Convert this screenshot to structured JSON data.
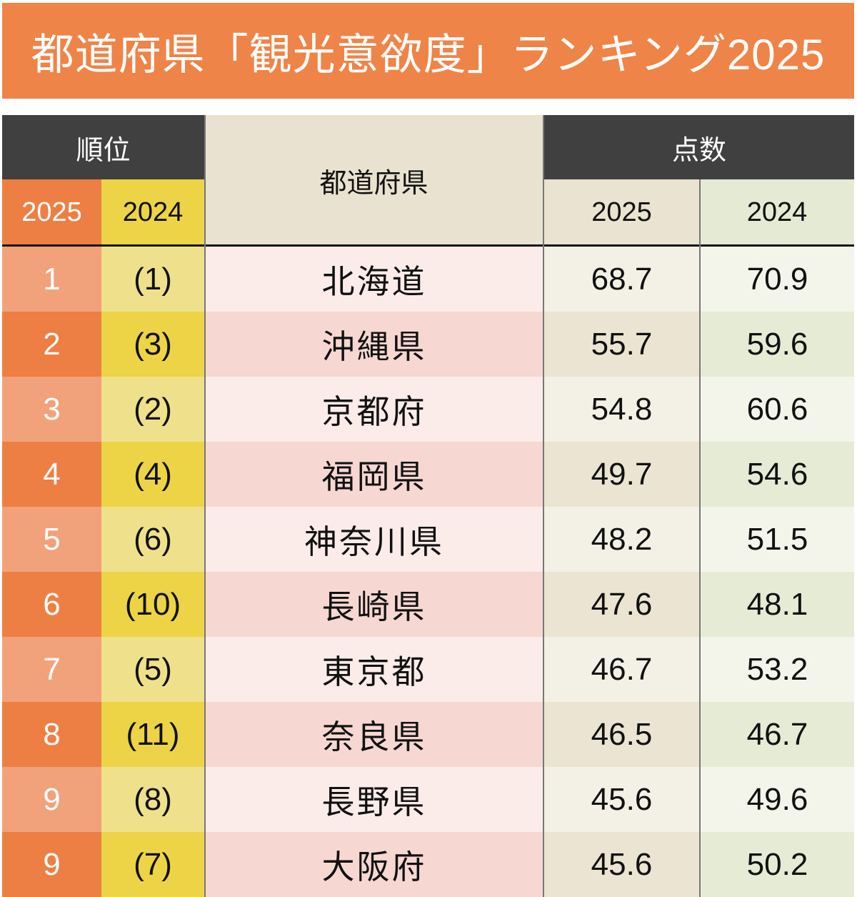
{
  "title": "都道府県「観光意欲度」ランキング2025",
  "header": {
    "rank": "順位",
    "prefecture": "都道府県",
    "score": "点数",
    "y2025": "2025",
    "y2024": "2024"
  },
  "colors": {
    "title_bg": "#ee8448",
    "header_dark": "#404040",
    "rank2025": "#ee7f44",
    "rank2025_light": "#f2a27a",
    "rank2024": "#ecd446",
    "rank2024_light": "#efe08c"
  },
  "chart_data": {
    "type": "table",
    "columns": [
      "順位 2025",
      "順位 2024",
      "都道府県",
      "点数 2025",
      "点数 2024"
    ],
    "rows": [
      {
        "rank2025": "1",
        "rank2024": "(1)",
        "name": "北海道",
        "score2025": "68.7",
        "score2024": "70.9"
      },
      {
        "rank2025": "2",
        "rank2024": "(3)",
        "name": "沖縄県",
        "score2025": "55.7",
        "score2024": "59.6"
      },
      {
        "rank2025": "3",
        "rank2024": "(2)",
        "name": "京都府",
        "score2025": "54.8",
        "score2024": "60.6"
      },
      {
        "rank2025": "4",
        "rank2024": "(4)",
        "name": "福岡県",
        "score2025": "49.7",
        "score2024": "54.6"
      },
      {
        "rank2025": "5",
        "rank2024": "(6)",
        "name": "神奈川県",
        "score2025": "48.2",
        "score2024": "51.5"
      },
      {
        "rank2025": "6",
        "rank2024": "(10)",
        "name": "長崎県",
        "score2025": "47.6",
        "score2024": "48.1"
      },
      {
        "rank2025": "7",
        "rank2024": "(5)",
        "name": "東京都",
        "score2025": "46.7",
        "score2024": "53.2"
      },
      {
        "rank2025": "8",
        "rank2024": "(11)",
        "name": "奈良県",
        "score2025": "46.5",
        "score2024": "46.7"
      },
      {
        "rank2025": "9",
        "rank2024": "(8)",
        "name": "長野県",
        "score2025": "45.6",
        "score2024": "49.6"
      },
      {
        "rank2025": "9",
        "rank2024": "(7)",
        "name": "大阪府",
        "score2025": "45.6",
        "score2024": "50.2"
      }
    ]
  }
}
